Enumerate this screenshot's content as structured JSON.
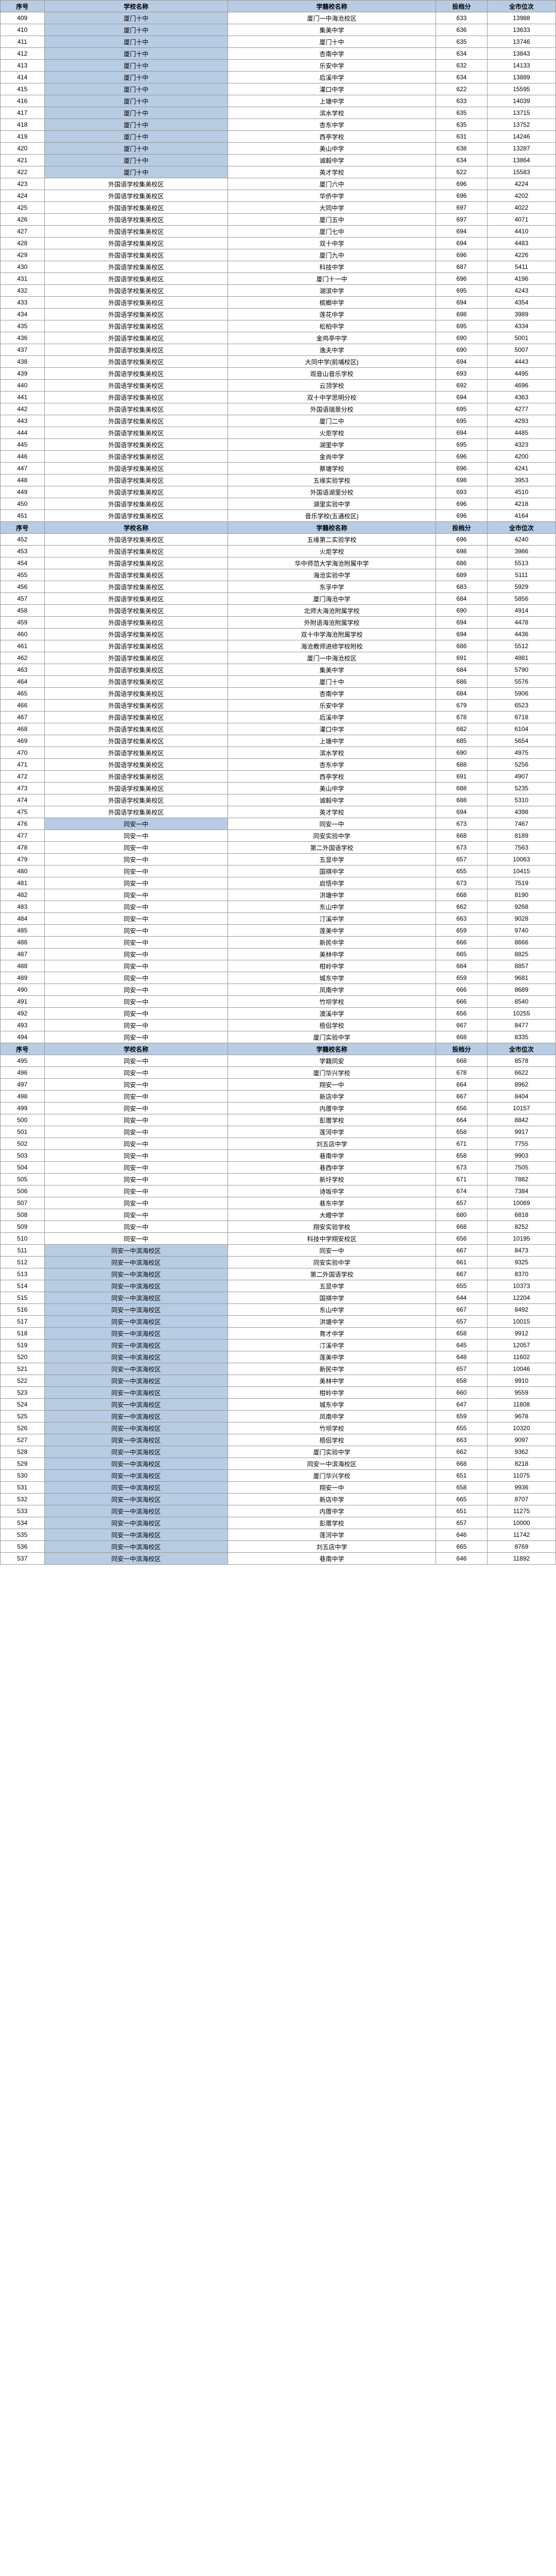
{
  "headers": {
    "seq": "序号",
    "school": "学校名称",
    "reg": "学籍校名称",
    "score": "投档分",
    "rank": "全市位次"
  },
  "rows": [
    {
      "seq": "409",
      "school": "厦门十中",
      "reg": "厦门一中海沧校区",
      "score": "633",
      "rank": "13988",
      "blue": true
    },
    {
      "seq": "410",
      "school": "厦门十中",
      "reg": "集美中学",
      "score": "636",
      "rank": "13633",
      "blue": true
    },
    {
      "seq": "411",
      "school": "厦门十中",
      "reg": "厦门十中",
      "score": "635",
      "rank": "13746",
      "blue": true
    },
    {
      "seq": "412",
      "school": "厦门十中",
      "reg": "杏南中学",
      "score": "634",
      "rank": "13843",
      "blue": true
    },
    {
      "seq": "413",
      "school": "厦门十中",
      "reg": "乐安中学",
      "score": "632",
      "rank": "14133",
      "blue": true
    },
    {
      "seq": "414",
      "school": "厦门十中",
      "reg": "后溪中学",
      "score": "634",
      "rank": "13889",
      "blue": true
    },
    {
      "seq": "415",
      "school": "厦门十中",
      "reg": "灌口中学",
      "score": "622",
      "rank": "15595",
      "blue": true
    },
    {
      "seq": "416",
      "school": "厦门十中",
      "reg": "上塘中学",
      "score": "633",
      "rank": "14039",
      "blue": true
    },
    {
      "seq": "417",
      "school": "厦门十中",
      "reg": "滨水学校",
      "score": "635",
      "rank": "13715",
      "blue": true
    },
    {
      "seq": "418",
      "school": "厦门十中",
      "reg": "杏东中学",
      "score": "635",
      "rank": "13752",
      "blue": true
    },
    {
      "seq": "419",
      "school": "厦门十中",
      "reg": "西亭学校",
      "score": "631",
      "rank": "14246",
      "blue": true
    },
    {
      "seq": "420",
      "school": "厦门十中",
      "reg": "美山中学",
      "score": "638",
      "rank": "13287",
      "blue": true
    },
    {
      "seq": "421",
      "school": "厦门十中",
      "reg": "诚毅中学",
      "score": "634",
      "rank": "13864",
      "blue": true
    },
    {
      "seq": "422",
      "school": "厦门十中",
      "reg": "英才学校",
      "score": "622",
      "rank": "15583",
      "blue": true
    },
    {
      "seq": "423",
      "school": "外国语学校集美校区",
      "reg": "厦门六中",
      "score": "696",
      "rank": "4224"
    },
    {
      "seq": "424",
      "school": "外国语学校集美校区",
      "reg": "华侨中学",
      "score": "696",
      "rank": "4202"
    },
    {
      "seq": "425",
      "school": "外国语学校集美校区",
      "reg": "大同中学",
      "score": "697",
      "rank": "4022"
    },
    {
      "seq": "426",
      "school": "外国语学校集美校区",
      "reg": "厦门五中",
      "score": "697",
      "rank": "4071"
    },
    {
      "seq": "427",
      "school": "外国语学校集美校区",
      "reg": "厦门七中",
      "score": "694",
      "rank": "4410"
    },
    {
      "seq": "428",
      "school": "外国语学校集美校区",
      "reg": "双十中学",
      "score": "694",
      "rank": "4483"
    },
    {
      "seq": "429",
      "school": "外国语学校集美校区",
      "reg": "厦门九中",
      "score": "696",
      "rank": "4226"
    },
    {
      "seq": "430",
      "school": "外国语学校集美校区",
      "reg": "科技中学",
      "score": "687",
      "rank": "5411"
    },
    {
      "seq": "431",
      "school": "外国语学校集美校区",
      "reg": "厦门十一中",
      "score": "696",
      "rank": "4196"
    },
    {
      "seq": "432",
      "school": "外国语学校集美校区",
      "reg": "湖滨中学",
      "score": "695",
      "rank": "4243"
    },
    {
      "seq": "433",
      "school": "外国语学校集美校区",
      "reg": "槟榔中学",
      "score": "694",
      "rank": "4354"
    },
    {
      "seq": "434",
      "school": "外国语学校集美校区",
      "reg": "莲花中学",
      "score": "698",
      "rank": "3989"
    },
    {
      "seq": "435",
      "school": "外国语学校集美校区",
      "reg": "松柏中学",
      "score": "695",
      "rank": "4334"
    },
    {
      "seq": "436",
      "school": "外国语学校集美校区",
      "reg": "金鸡亭中学",
      "score": "690",
      "rank": "5001"
    },
    {
      "seq": "437",
      "school": "外国语学校集美校区",
      "reg": "逸夫中学",
      "score": "690",
      "rank": "5007"
    },
    {
      "seq": "438",
      "school": "外国语学校集美校区",
      "reg": "大同中学(前埔校区)",
      "score": "694",
      "rank": "4443"
    },
    {
      "seq": "439",
      "school": "外国语学校集美校区",
      "reg": "观音山音乐学校",
      "score": "693",
      "rank": "4495"
    },
    {
      "seq": "440",
      "school": "外国语学校集美校区",
      "reg": "云顶学校",
      "score": "692",
      "rank": "4696"
    },
    {
      "seq": "441",
      "school": "外国语学校集美校区",
      "reg": "双十中学思明分校",
      "score": "694",
      "rank": "4363"
    },
    {
      "seq": "442",
      "school": "外国语学校集美校区",
      "reg": "外国语瑞景分校",
      "score": "695",
      "rank": "4277"
    },
    {
      "seq": "443",
      "school": "外国语学校集美校区",
      "reg": "厦门二中",
      "score": "695",
      "rank": "4293"
    },
    {
      "seq": "444",
      "school": "外国语学校集美校区",
      "reg": "火炬学校",
      "score": "694",
      "rank": "4485"
    },
    {
      "seq": "445",
      "school": "外国语学校集美校区",
      "reg": "湖里中学",
      "score": "695",
      "rank": "4323"
    },
    {
      "seq": "446",
      "school": "外国语学校集美校区",
      "reg": "金尚中学",
      "score": "696",
      "rank": "4200"
    },
    {
      "seq": "447",
      "school": "外国语学校集美校区",
      "reg": "蔡塘学校",
      "score": "696",
      "rank": "4241"
    },
    {
      "seq": "448",
      "school": "外国语学校集美校区",
      "reg": "五缘实验学校",
      "score": "698",
      "rank": "3953"
    },
    {
      "seq": "449",
      "school": "外国语学校集美校区",
      "reg": "外国语湖里分校",
      "score": "693",
      "rank": "4510"
    },
    {
      "seq": "450",
      "school": "外国语学校集美校区",
      "reg": "湖里实验中学",
      "score": "696",
      "rank": "4218"
    },
    {
      "seq": "451",
      "school": "外国语学校集美校区",
      "reg": "音乐学校(五通校区)",
      "score": "696",
      "rank": "4164"
    },
    {
      "header": true
    },
    {
      "seq": "452",
      "school": "外国语学校集美校区",
      "reg": "五缘第二实验学校",
      "score": "696",
      "rank": "4240"
    },
    {
      "seq": "453",
      "school": "外国语学校集美校区",
      "reg": "火炬学校",
      "score": "698",
      "rank": "3986"
    },
    {
      "seq": "454",
      "school": "外国语学校集美校区",
      "reg": "华中师范大学海沧附属中学",
      "score": "686",
      "rank": "5513"
    },
    {
      "seq": "455",
      "school": "外国语学校集美校区",
      "reg": "海沧实验中学",
      "score": "689",
      "rank": "5111"
    },
    {
      "seq": "456",
      "school": "外国语学校集美校区",
      "reg": "东孚中学",
      "score": "683",
      "rank": "5929"
    },
    {
      "seq": "457",
      "school": "外国语学校集美校区",
      "reg": "厦门海沧中学",
      "score": "684",
      "rank": "5856"
    },
    {
      "seq": "458",
      "school": "外国语学校集美校区",
      "reg": "北师大海沧附属学校",
      "score": "690",
      "rank": "4914"
    },
    {
      "seq": "459",
      "school": "外国语学校集美校区",
      "reg": "外附语海沧附属学校",
      "score": "694",
      "rank": "4478"
    },
    {
      "seq": "460",
      "school": "外国语学校集美校区",
      "reg": "双十中学海沧附属学校",
      "score": "694",
      "rank": "4436"
    },
    {
      "seq": "461",
      "school": "外国语学校集美校区",
      "reg": "海沧教师进修学校附校",
      "score": "686",
      "rank": "5512"
    },
    {
      "seq": "462",
      "school": "外国语学校集美校区",
      "reg": "厦门一中海沧校区",
      "score": "691",
      "rank": "4881"
    },
    {
      "seq": "463",
      "school": "外国语学校集美校区",
      "reg": "集美中学",
      "score": "684",
      "rank": "5790"
    },
    {
      "seq": "464",
      "school": "外国语学校集美校区",
      "reg": "厦门十中",
      "score": "686",
      "rank": "5576"
    },
    {
      "seq": "465",
      "school": "外国语学校集美校区",
      "reg": "杏南中学",
      "score": "684",
      "rank": "5906"
    },
    {
      "seq": "466",
      "school": "外国语学校集美校区",
      "reg": "乐安中学",
      "score": "679",
      "rank": "6523"
    },
    {
      "seq": "467",
      "school": "外国语学校集美校区",
      "reg": "后溪中学",
      "score": "678",
      "rank": "6718"
    },
    {
      "seq": "468",
      "school": "外国语学校集美校区",
      "reg": "灌口中学",
      "score": "682",
      "rank": "6104"
    },
    {
      "seq": "469",
      "school": "外国语学校集美校区",
      "reg": "上塘中学",
      "score": "685",
      "rank": "5654"
    },
    {
      "seq": "470",
      "school": "外国语学校集美校区",
      "reg": "滨水学校",
      "score": "690",
      "rank": "4975"
    },
    {
      "seq": "471",
      "school": "外国语学校集美校区",
      "reg": "杏东中学",
      "score": "688",
      "rank": "5256"
    },
    {
      "seq": "472",
      "school": "外国语学校集美校区",
      "reg": "西亭学校",
      "score": "691",
      "rank": "4907"
    },
    {
      "seq": "473",
      "school": "外国语学校集美校区",
      "reg": "美山中学",
      "score": "688",
      "rank": "5235"
    },
    {
      "seq": "474",
      "school": "外国语学校集美校区",
      "reg": "诚毅中学",
      "score": "688",
      "rank": "5310"
    },
    {
      "seq": "475",
      "school": "外国语学校集美校区",
      "reg": "英才学校",
      "score": "694",
      "rank": "4398"
    },
    {
      "seq": "476",
      "school": "同安一中",
      "reg": "同安一中",
      "score": "673",
      "rank": "7467",
      "blue": true
    },
    {
      "seq": "477",
      "school": "同安一中",
      "reg": "同安实验中学",
      "score": "668",
      "rank": "8189"
    },
    {
      "seq": "478",
      "school": "同安一中",
      "reg": "第二外国语学校",
      "score": "673",
      "rank": "7563"
    },
    {
      "seq": "479",
      "school": "同安一中",
      "reg": "五显中学",
      "score": "657",
      "rank": "10063"
    },
    {
      "seq": "480",
      "school": "同安一中",
      "reg": "国祺中学",
      "score": "655",
      "rank": "10415"
    },
    {
      "seq": "481",
      "school": "同安一中",
      "reg": "启悟中学",
      "score": "673",
      "rank": "7519"
    },
    {
      "seq": "482",
      "school": "同安一中",
      "reg": "洪塘中学",
      "score": "668",
      "rank": "8190"
    },
    {
      "seq": "483",
      "school": "同安一中",
      "reg": "东山中学",
      "score": "662",
      "rank": "9268"
    },
    {
      "seq": "484",
      "school": "同安一中",
      "reg": "汀溪中学",
      "score": "663",
      "rank": "9028"
    },
    {
      "seq": "485",
      "school": "同安一中",
      "reg": "莲美中学",
      "score": "659",
      "rank": "9740"
    },
    {
      "seq": "486",
      "school": "同安一中",
      "reg": "新民中学",
      "score": "666",
      "rank": "8666"
    },
    {
      "seq": "487",
      "school": "同安一中",
      "reg": "美林中学",
      "score": "665",
      "rank": "8825"
    },
    {
      "seq": "488",
      "school": "同安一中",
      "reg": "柑岭中学",
      "score": "664",
      "rank": "8857"
    },
    {
      "seq": "489",
      "school": "同安一中",
      "reg": "城东中学",
      "score": "659",
      "rank": "9681"
    },
    {
      "seq": "490",
      "school": "同安一中",
      "reg": "凤南中学",
      "score": "666",
      "rank": "8689"
    },
    {
      "seq": "491",
      "school": "同安一中",
      "reg": "竹坝学校",
      "score": "666",
      "rank": "8540"
    },
    {
      "seq": "492",
      "school": "同安一中",
      "reg": "澳溪中学",
      "score": "656",
      "rank": "10255"
    },
    {
      "seq": "493",
      "school": "同安一中",
      "reg": "梧侣学校",
      "score": "667",
      "rank": "8477"
    },
    {
      "seq": "494",
      "school": "同安一中",
      "reg": "厦门实验中学",
      "score": "668",
      "rank": "8335"
    },
    {
      "header": true
    },
    {
      "seq": "495",
      "school": "同安一中",
      "reg": "学籍同安",
      "score": "668",
      "rank": "8578"
    },
    {
      "seq": "496",
      "school": "同安一中",
      "reg": "厦门华兴学校",
      "score": "678",
      "rank": "6622"
    },
    {
      "seq": "497",
      "school": "同安一中",
      "reg": "翔安一中",
      "score": "664",
      "rank": "8962"
    },
    {
      "seq": "498",
      "school": "同安一中",
      "reg": "新店中学",
      "score": "667",
      "rank": "8404"
    },
    {
      "seq": "499",
      "school": "同安一中",
      "reg": "内厝中学",
      "score": "656",
      "rank": "10157"
    },
    {
      "seq": "500",
      "school": "同安一中",
      "reg": "彭厝学校",
      "score": "664",
      "rank": "8842"
    },
    {
      "seq": "501",
      "school": "同安一中",
      "reg": "莲河中学",
      "score": "658",
      "rank": "9917"
    },
    {
      "seq": "502",
      "school": "同安一中",
      "reg": "刘五店中学",
      "score": "671",
      "rank": "7755"
    },
    {
      "seq": "503",
      "school": "同安一中",
      "reg": "巷南中学",
      "score": "658",
      "rank": "9903"
    },
    {
      "seq": "504",
      "school": "同安一中",
      "reg": "巷西中学",
      "score": "673",
      "rank": "7505"
    },
    {
      "seq": "505",
      "school": "同安一中",
      "reg": "新圩学校",
      "score": "671",
      "rank": "7882"
    },
    {
      "seq": "506",
      "school": "同安一中",
      "reg": "诗坂中学",
      "score": "674",
      "rank": "7384"
    },
    {
      "seq": "507",
      "school": "同安一中",
      "reg": "巷东中学",
      "score": "657",
      "rank": "10069"
    },
    {
      "seq": "508",
      "school": "同安一中",
      "reg": "大嶝中学",
      "score": "680",
      "rank": "6818"
    },
    {
      "seq": "509",
      "school": "同安一中",
      "reg": "翔安实验学校",
      "score": "668",
      "rank": "8252"
    },
    {
      "seq": "510",
      "school": "同安一中",
      "reg": "科技中学翔安校区",
      "score": "656",
      "rank": "10195"
    },
    {
      "seq": "511",
      "school": "同安一中滨海校区",
      "reg": "同安一中",
      "score": "667",
      "rank": "8473",
      "blue": true
    },
    {
      "seq": "512",
      "school": "同安一中滨海校区",
      "reg": "同安实验中学",
      "score": "661",
      "rank": "9325",
      "blue": true
    },
    {
      "seq": "513",
      "school": "同安一中滨海校区",
      "reg": "第二外国语学校",
      "score": "667",
      "rank": "8370",
      "blue": true
    },
    {
      "seq": "514",
      "school": "同安一中滨海校区",
      "reg": "五显中学",
      "score": "655",
      "rank": "10373",
      "blue": true
    },
    {
      "seq": "515",
      "school": "同安一中滨海校区",
      "reg": "国祺中学",
      "score": "644",
      "rank": "12204",
      "blue": true
    },
    {
      "seq": "516",
      "school": "同安一中滨海校区",
      "reg": "东山中学",
      "score": "667",
      "rank": "8492",
      "blue": true
    },
    {
      "seq": "517",
      "school": "同安一中滨海校区",
      "reg": "洪塘中学",
      "score": "657",
      "rank": "10015",
      "blue": true
    },
    {
      "seq": "518",
      "school": "同安一中滨海校区",
      "reg": "育才中学",
      "score": "658",
      "rank": "9912",
      "blue": true
    },
    {
      "seq": "519",
      "school": "同安一中滨海校区",
      "reg": "汀溪中学",
      "score": "645",
      "rank": "12057",
      "blue": true
    },
    {
      "seq": "520",
      "school": "同安一中滨海校区",
      "reg": "莲美中学",
      "score": "648",
      "rank": "11602",
      "blue": true
    },
    {
      "seq": "521",
      "school": "同安一中滨海校区",
      "reg": "新民中学",
      "score": "657",
      "rank": "10046",
      "blue": true
    },
    {
      "seq": "522",
      "school": "同安一中滨海校区",
      "reg": "美林中学",
      "score": "658",
      "rank": "9910",
      "blue": true
    },
    {
      "seq": "523",
      "school": "同安一中滨海校区",
      "reg": "柑岭中学",
      "score": "660",
      "rank": "9559",
      "blue": true
    },
    {
      "seq": "524",
      "school": "同安一中滨海校区",
      "reg": "城东中学",
      "score": "647",
      "rank": "11808",
      "blue": true
    },
    {
      "seq": "525",
      "school": "同安一中滨海校区",
      "reg": "凤南中学",
      "score": "659",
      "rank": "9678",
      "blue": true
    },
    {
      "seq": "526",
      "school": "同安一中滨海校区",
      "reg": "竹坝学校",
      "score": "655",
      "rank": "10320",
      "blue": true
    },
    {
      "seq": "527",
      "school": "同安一中滨海校区",
      "reg": "梧侣学校",
      "score": "663",
      "rank": "9097",
      "blue": true
    },
    {
      "seq": "528",
      "school": "同安一中滨海校区",
      "reg": "厦门实验中学",
      "score": "662",
      "rank": "9362",
      "blue": true
    },
    {
      "seq": "529",
      "school": "同安一中滨海校区",
      "reg": "同安一中滨海校区",
      "score": "668",
      "rank": "8218",
      "blue": true
    },
    {
      "seq": "530",
      "school": "同安一中滨海校区",
      "reg": "厦门华兴学校",
      "score": "651",
      "rank": "11075",
      "blue": true
    },
    {
      "seq": "531",
      "school": "同安一中滨海校区",
      "reg": "翔安一中",
      "score": "658",
      "rank": "9936",
      "blue": true
    },
    {
      "seq": "532",
      "school": "同安一中滨海校区",
      "reg": "新店中学",
      "score": "665",
      "rank": "8707",
      "blue": true
    },
    {
      "seq": "533",
      "school": "同安一中滨海校区",
      "reg": "内厝中学",
      "score": "651",
      "rank": "11275",
      "blue": true
    },
    {
      "seq": "534",
      "school": "同安一中滨海校区",
      "reg": "彭厝学校",
      "score": "657",
      "rank": "10000",
      "blue": true
    },
    {
      "seq": "535",
      "school": "同安一中滨海校区",
      "reg": "莲河中学",
      "score": "646",
      "rank": "11742",
      "blue": true
    },
    {
      "seq": "536",
      "school": "同安一中滨海校区",
      "reg": "刘五店中学",
      "score": "665",
      "rank": "8769",
      "blue": true
    },
    {
      "seq": "537",
      "school": "同安一中滨海校区",
      "reg": "巷南中学",
      "score": "646",
      "rank": "11892",
      "blue": true
    }
  ]
}
